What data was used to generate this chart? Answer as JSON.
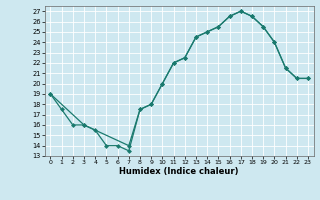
{
  "xlabel": "Humidex (Indice chaleur)",
  "bg_color": "#cee8f0",
  "line_color": "#1a7a6e",
  "grid_color": "#ffffff",
  "xlim": [
    -0.5,
    23.5
  ],
  "ylim": [
    13,
    27.5
  ],
  "xticks": [
    0,
    1,
    2,
    3,
    4,
    5,
    6,
    7,
    8,
    9,
    10,
    11,
    12,
    13,
    14,
    15,
    16,
    17,
    18,
    19,
    20,
    21,
    22,
    23
  ],
  "yticks": [
    13,
    14,
    15,
    16,
    17,
    18,
    19,
    20,
    21,
    22,
    23,
    24,
    25,
    26,
    27
  ],
  "curve1_x": [
    0,
    1,
    2,
    3,
    7,
    8,
    9,
    10,
    11,
    12,
    13,
    14,
    15,
    16,
    17,
    18,
    19,
    20,
    21,
    22,
    23
  ],
  "curve1_y": [
    19,
    17.5,
    16.0,
    16.0,
    14.0,
    17.5,
    18.0,
    20.0,
    22.0,
    22.5,
    24.5,
    25.0,
    25.5,
    26.5,
    27.0,
    26.5,
    25.5,
    24.0,
    21.5,
    20.5,
    20.5
  ],
  "curve2_x": [
    0,
    3,
    4,
    5,
    6,
    7,
    8,
    9,
    10,
    11,
    12,
    13,
    14,
    15,
    16,
    17,
    18,
    19,
    20,
    21,
    22,
    23
  ],
  "curve2_y": [
    19,
    16.0,
    15.5,
    14.0,
    14.0,
    13.5,
    17.5,
    18.0,
    20.0,
    22.0,
    22.5,
    24.5,
    25.0,
    25.5,
    26.5,
    27.0,
    26.5,
    25.5,
    24.0,
    21.5,
    20.5,
    20.5
  ]
}
